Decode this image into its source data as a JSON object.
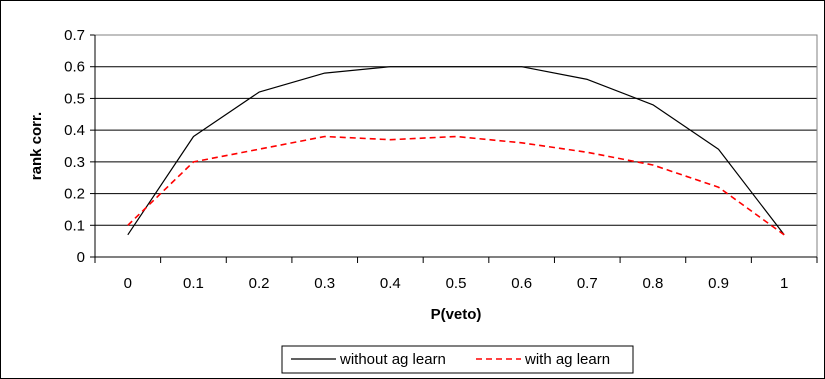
{
  "chart_data": {
    "type": "line",
    "title": "",
    "xlabel": "P(veto)",
    "ylabel": "rank corr.",
    "x": [
      0,
      0.1,
      0.2,
      0.3,
      0.4,
      0.5,
      0.6,
      0.7,
      0.8,
      0.9,
      1
    ],
    "x_tick_labels": [
      "0",
      "0.1",
      "0.2",
      "0.3",
      "0.4",
      "0.5",
      "0.6",
      "0.7",
      "0.8",
      "0.9",
      "1"
    ],
    "ylim": [
      0,
      0.7
    ],
    "y_ticks": [
      0,
      0.1,
      0.2,
      0.3,
      0.4,
      0.5,
      0.6,
      0.7
    ],
    "y_tick_labels": [
      "0",
      "0.1",
      "0.2",
      "0.3",
      "0.4",
      "0.5",
      "0.6",
      "0.7"
    ],
    "grid": "horizontal",
    "legend_position": "bottom",
    "series": [
      {
        "name": "without ag learn",
        "color": "#000000",
        "dash": "solid",
        "values": [
          0.07,
          0.38,
          0.52,
          0.58,
          0.6,
          0.6,
          0.6,
          0.56,
          0.48,
          0.34,
          0.07
        ]
      },
      {
        "name": "with ag learn",
        "color": "#ff0000",
        "dash": "dashed",
        "values": [
          0.1,
          0.3,
          0.34,
          0.38,
          0.37,
          0.38,
          0.36,
          0.33,
          0.29,
          0.22,
          0.07
        ]
      }
    ]
  }
}
